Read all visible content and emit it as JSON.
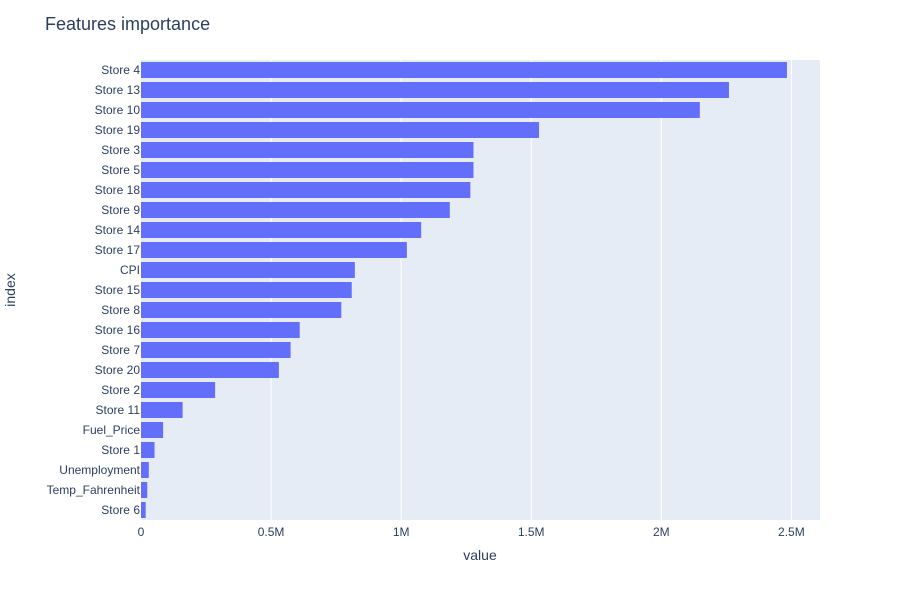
{
  "chart_data": {
    "type": "bar",
    "orientation": "horizontal",
    "title": "Features importance",
    "xlabel": "value",
    "ylabel": "index",
    "xlim": [
      0,
      2610000
    ],
    "grid": true,
    "categories": [
      "Store 4",
      "Store 13",
      "Store 10",
      "Store 19",
      "Store 3",
      "Store 5",
      "Store 18",
      "Store 9",
      "Store 14",
      "Store 17",
      "CPI",
      "Store 15",
      "Store 8",
      "Store 16",
      "Store 7",
      "Store 20",
      "Store 2",
      "Store 11",
      "Fuel_Price",
      "Store 1",
      "Unemployment",
      "Temp_Fahrenheit",
      "Store 6"
    ],
    "values": [
      2483000,
      2260000,
      2148000,
      1530000,
      1278000,
      1278000,
      1266000,
      1187000,
      1077000,
      1022000,
      822000,
      810000,
      770000,
      610000,
      575000,
      530000,
      285000,
      160000,
      85000,
      52000,
      30000,
      24000,
      18000
    ],
    "xticks": [
      {
        "value": 0,
        "label": "0"
      },
      {
        "value": 500000,
        "label": "0.5M"
      },
      {
        "value": 1000000,
        "label": "1M"
      },
      {
        "value": 1500000,
        "label": "1.5M"
      },
      {
        "value": 2000000,
        "label": "2M"
      },
      {
        "value": 2500000,
        "label": "2.5M"
      }
    ],
    "colors": {
      "bar": "#636efa",
      "plot_bg": "#e5ecf6",
      "text": "#2a3f5f"
    }
  }
}
